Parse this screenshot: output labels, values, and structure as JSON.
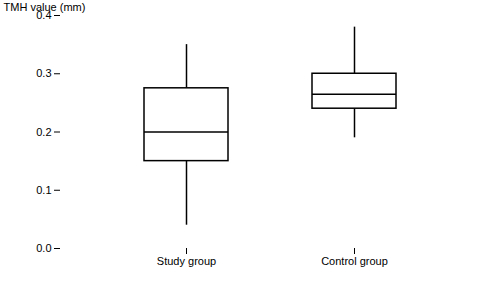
{
  "chart_data": {
    "type": "box",
    "categories": [
      "Study group",
      "Control group"
    ],
    "whisker_low": [
      0.04,
      0.19
    ],
    "q1": [
      0.15,
      0.24
    ],
    "median": [
      0.2,
      0.265
    ],
    "q3": [
      0.275,
      0.3
    ],
    "whisker_high": [
      0.35,
      0.38
    ],
    "ylabel": "TMH value (mm)",
    "ylim": [
      0,
      0.4
    ],
    "yticks": [
      {
        "value": 0,
        "label": "0.0"
      },
      0.1,
      0.2,
      0.3,
      0.4
    ],
    "color": "black",
    "grid": false
  }
}
